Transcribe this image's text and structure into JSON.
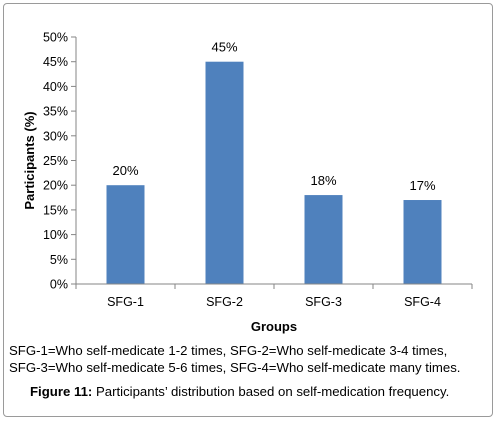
{
  "chart_data": {
    "type": "bar",
    "categories": [
      "SFG-1",
      "SFG-2",
      "SFG-3",
      "SFG-4"
    ],
    "values": [
      20,
      45,
      18,
      17
    ],
    "data_labels": [
      "20%",
      "45%",
      "18%",
      "17%"
    ],
    "xlabel": "Groups",
    "ylabel": "Participants (%)",
    "ylim": [
      0,
      50
    ],
    "yticks": [
      0,
      5,
      10,
      15,
      20,
      25,
      30,
      35,
      40,
      45,
      50
    ],
    "ytick_labels": [
      "0%",
      "5%",
      "10%",
      "15%",
      "20%",
      "25%",
      "30%",
      "35%",
      "40%",
      "45%",
      "50%"
    ],
    "bar_color": "#4f81bd",
    "grid": false,
    "legend": "none"
  },
  "caption": {
    "note_line1": "SFG-1=Who self-medicate 1-2 times, SFG-2=Who self-medicate 3-4 times,",
    "note_line2": "SFG-3=Who self-medicate 5-6 times, SFG-4=Who self-medicate many times.",
    "figure_label": "Figure 11:",
    "figure_text": " Participants’ distribution based on self-medication frequency."
  }
}
